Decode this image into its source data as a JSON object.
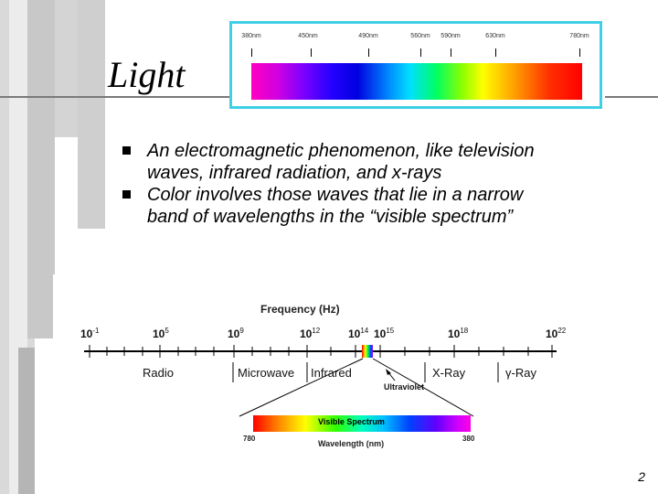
{
  "slide": {
    "title": "Light",
    "page_number": "2"
  },
  "visible_spectrum_strip": {
    "labels": [
      "380nm",
      "450nm",
      "490nm",
      "560nm",
      "590nm",
      "630nm",
      "780nm"
    ],
    "frame_color": "#3fd0e8"
  },
  "bullets": [
    "An electromagnetic phenomenon, like television waves, infrared radiation, and x-rays",
    "Color involves those waves that lie in a narrow band of wavelengths in the “visible spectrum”"
  ],
  "em_diagram": {
    "frequency_title": "Frequency (Hz)",
    "exponents": [
      {
        "base": "10",
        "exp": "-1"
      },
      {
        "base": "10",
        "exp": "5"
      },
      {
        "base": "10",
        "exp": "9"
      },
      {
        "base": "10",
        "exp": "12"
      },
      {
        "base": "10",
        "exp": "14"
      },
      {
        "base": "10",
        "exp": "15"
      },
      {
        "base": "10",
        "exp": "18"
      },
      {
        "base": "10",
        "exp": "22"
      }
    ],
    "bands": [
      "Radio",
      "Microwave",
      "Infrared",
      "X-Ray",
      "γ-Ray"
    ],
    "ultraviolet_label": "Ultraviolet",
    "visible_label": "Visible Spectrum",
    "wavelength_left": "780",
    "wavelength_right": "380",
    "wavelength_title": "Wavelength (nm)"
  }
}
